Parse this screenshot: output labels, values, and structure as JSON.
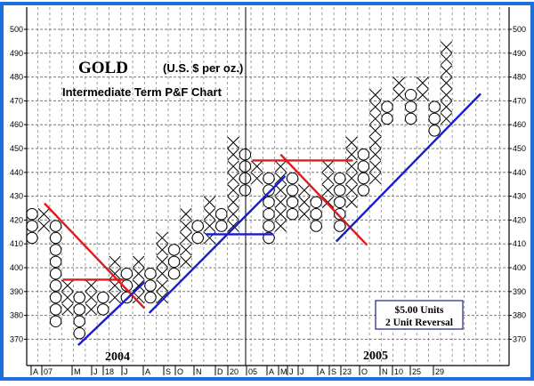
{
  "chart_data": {
    "type": "point-and-figure",
    "title": "GOLD",
    "subtitle_units": "(U.S. $ per oz.)",
    "subtitle": "Intermediate Term P&F Chart",
    "legend": {
      "line1": "$5.00 Units",
      "line2": "2 Unit Reversal"
    },
    "box_size": 5,
    "reversal": 2,
    "ylim": [
      365,
      505
    ],
    "y_ticks": [
      370,
      380,
      390,
      400,
      410,
      420,
      430,
      440,
      450,
      460,
      470,
      480,
      490,
      500
    ],
    "grid": true,
    "years": [
      "2004",
      "2005"
    ],
    "x_tick_labels": [
      "A",
      "07",
      "M",
      "J",
      "18",
      "J",
      "A",
      "S",
      "O",
      "N",
      "D",
      "20",
      "05",
      "A",
      "M",
      "J",
      "J",
      "A",
      "S",
      "23",
      "O",
      "N",
      "10",
      "25",
      "29"
    ],
    "columns": [
      {
        "type": "O",
        "low": 410,
        "high": 420
      },
      {
        "type": "X",
        "low": 415,
        "high": 420
      },
      {
        "type": "O",
        "low": 375,
        "high": 415
      },
      {
        "type": "X",
        "low": 380,
        "high": 390
      },
      {
        "type": "O",
        "low": 370,
        "high": 385
      },
      {
        "type": "X",
        "low": 380,
        "high": 390
      },
      {
        "type": "O",
        "low": 380,
        "high": 385
      },
      {
        "type": "X",
        "low": 385,
        "high": 400
      },
      {
        "type": "O",
        "low": 385,
        "high": 395
      },
      {
        "type": "X",
        "low": 385,
        "high": 400
      },
      {
        "type": "O",
        "low": 385,
        "high": 395
      },
      {
        "type": "X",
        "low": 385,
        "high": 410
      },
      {
        "type": "O",
        "low": 395,
        "high": 405
      },
      {
        "type": "X",
        "low": 400,
        "high": 420
      },
      {
        "type": "O",
        "low": 410,
        "high": 415
      },
      {
        "type": "X",
        "low": 410,
        "high": 425
      },
      {
        "type": "O",
        "low": 415,
        "high": 420
      },
      {
        "type": "X",
        "low": 415,
        "high": 450
      },
      {
        "type": "O",
        "low": 430,
        "high": 445
      },
      {
        "type": "X",
        "low": 435,
        "high": 440
      },
      {
        "type": "O",
        "low": 410,
        "high": 435
      },
      {
        "type": "X",
        "low": 415,
        "high": 440
      },
      {
        "type": "O",
        "low": 420,
        "high": 435
      },
      {
        "type": "X",
        "low": 420,
        "high": 430
      },
      {
        "type": "O",
        "low": 415,
        "high": 425
      },
      {
        "type": "X",
        "low": 425,
        "high": 440
      },
      {
        "type": "O",
        "low": 415,
        "high": 435
      },
      {
        "type": "X",
        "low": 425,
        "high": 450
      },
      {
        "type": "O",
        "low": 430,
        "high": 445
      },
      {
        "type": "X",
        "low": 435,
        "high": 470
      },
      {
        "type": "O",
        "low": 460,
        "high": 465
      },
      {
        "type": "X",
        "low": 470,
        "high": 475
      },
      {
        "type": "O",
        "low": 460,
        "high": 470
      },
      {
        "type": "X",
        "low": 470,
        "high": 475
      },
      {
        "type": "O",
        "low": 455,
        "high": 465
      },
      {
        "type": "X",
        "low": 460,
        "high": 490
      }
    ],
    "trendlines": [
      {
        "kind": "resistance",
        "color": "#e01a1a",
        "from": [
          1.05,
          427
        ],
        "to": [
          9.5,
          383
        ]
      },
      {
        "kind": "resistance",
        "color": "#e01a1a",
        "from": [
          2.6,
          395
        ],
        "to": [
          7.8,
          395
        ]
      },
      {
        "kind": "resistance",
        "color": "#e01a1a",
        "from": [
          18.6,
          445
        ],
        "to": [
          27.1,
          445
        ]
      },
      {
        "kind": "resistance",
        "color": "#e01a1a",
        "from": [
          21,
          447.5
        ],
        "to": [
          28.3,
          409.5
        ]
      },
      {
        "kind": "support",
        "color": "#1a1ad0",
        "from": [
          3.9,
          367.5
        ],
        "to": [
          9.5,
          394
        ]
      },
      {
        "kind": "support",
        "color": "#1a1ad0",
        "from": [
          9.9,
          381
        ],
        "to": [
          21.4,
          438.5
        ]
      },
      {
        "kind": "support",
        "color": "#1a1ad0",
        "from": [
          14.7,
          414
        ],
        "to": [
          20.4,
          414
        ]
      },
      {
        "kind": "support",
        "color": "#1a1ad0",
        "from": [
          25.7,
          411
        ],
        "to": [
          37.9,
          473
        ]
      }
    ]
  }
}
